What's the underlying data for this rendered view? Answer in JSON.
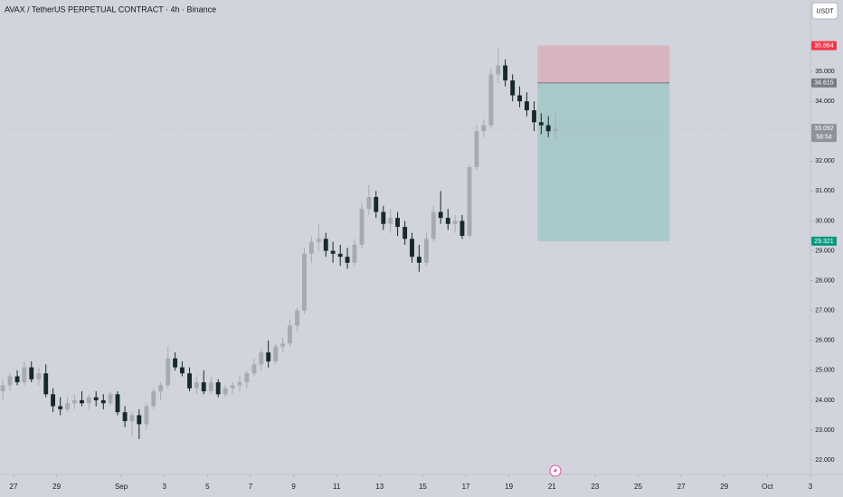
{
  "chart_data": {
    "type": "candlestick",
    "title": "AVAX / TetherUS PERPETUAL CONTRACT · 4h · Binance",
    "currency": "USDT",
    "x": [
      26.5,
      26.83,
      27.17,
      27.5,
      27.83,
      28.17,
      28.5,
      28.83,
      29.17,
      29.5,
      29.83,
      30.17,
      30.5,
      30.83,
      31.17,
      31.5,
      31.83,
      32.17,
      32.5,
      32.83,
      33.17,
      33.5,
      33.83,
      34.17,
      34.5,
      34.83,
      35.17,
      35.5,
      35.83,
      36.17,
      36.5,
      36.83,
      37.17,
      37.5,
      37.83,
      38.17,
      38.5,
      38.83,
      39.17,
      39.5,
      39.83,
      40.17,
      40.5,
      40.83,
      41.17,
      41.5,
      41.83,
      42.17,
      42.5,
      42.83,
      43.17,
      43.5,
      43.83,
      44.17,
      44.5,
      44.83,
      45.17,
      45.5,
      45.83,
      46.17,
      46.5,
      46.83,
      47.17,
      47.5,
      47.83,
      48.17,
      48.5,
      48.83,
      49.17,
      49.5,
      49.83,
      50.17,
      50.5,
      50.83,
      51.17,
      51.5,
      51.83,
      52.17
    ],
    "open": [
      24.3,
      24.5,
      24.8,
      24.6,
      25.1,
      24.7,
      24.9,
      24.2,
      23.8,
      23.7,
      23.9,
      24.0,
      23.9,
      24.1,
      24.0,
      23.9,
      24.2,
      23.6,
      23.3,
      23.5,
      23.2,
      23.8,
      24.3,
      24.5,
      25.4,
      25.1,
      24.9,
      24.4,
      24.6,
      24.3,
      24.6,
      24.2,
      24.4,
      24.5,
      24.6,
      24.9,
      25.2,
      25.6,
      25.3,
      25.8,
      25.9,
      26.5,
      27.0,
      28.9,
      29.3,
      29.4,
      29.0,
      28.9,
      28.8,
      28.6,
      29.2,
      30.4,
      30.8,
      30.3,
      29.9,
      30.1,
      29.8,
      29.4,
      28.8,
      28.6,
      29.4,
      30.3,
      30.1,
      29.9,
      30.0,
      29.5,
      31.8,
      33.0,
      33.2,
      34.9,
      35.2,
      34.7,
      34.2,
      34.0,
      33.7,
      33.3,
      33.2,
      33.0
    ],
    "high": [
      24.7,
      24.9,
      25.0,
      25.3,
      25.3,
      25.1,
      25.2,
      24.4,
      24.1,
      24.1,
      24.2,
      24.3,
      24.2,
      24.3,
      24.2,
      24.3,
      24.3,
      23.8,
      23.6,
      23.7,
      23.9,
      24.4,
      24.6,
      25.8,
      25.6,
      25.3,
      25.1,
      24.8,
      25.0,
      24.8,
      24.7,
      24.5,
      24.6,
      24.8,
      25.0,
      25.4,
      25.7,
      26.0,
      25.9,
      26.1,
      26.7,
      27.1,
      29.1,
      29.5,
      29.9,
      29.6,
      29.3,
      29.2,
      29.1,
      29.4,
      30.6,
      31.2,
      31.0,
      30.5,
      30.4,
      30.3,
      30.0,
      29.6,
      29.2,
      29.6,
      30.5,
      31.0,
      30.4,
      30.2,
      30.2,
      31.9,
      33.2,
      33.4,
      35.1,
      35.8,
      35.4,
      34.9,
      34.5,
      34.3,
      34.0,
      33.6,
      33.5,
      33.6
    ],
    "low": [
      24.0,
      24.3,
      24.5,
      24.5,
      24.6,
      24.5,
      24.1,
      23.6,
      23.5,
      23.6,
      23.7,
      23.8,
      23.7,
      23.8,
      23.7,
      23.8,
      23.5,
      23.1,
      22.8,
      22.7,
      23.0,
      23.7,
      24.0,
      24.4,
      25.0,
      24.8,
      24.3,
      24.2,
      24.2,
      24.2,
      24.1,
      24.1,
      24.2,
      24.3,
      24.4,
      24.8,
      25.0,
      25.1,
      25.2,
      25.6,
      25.8,
      26.3,
      26.9,
      28.6,
      29.0,
      28.8,
      28.6,
      28.5,
      28.4,
      28.5,
      29.1,
      30.2,
      30.1,
      29.7,
      29.6,
      29.5,
      29.2,
      28.6,
      28.3,
      28.5,
      29.3,
      29.9,
      29.7,
      29.6,
      29.4,
      29.4,
      31.7,
      32.8,
      33.1,
      34.6,
      34.5,
      34.0,
      33.8,
      33.5,
      33.0,
      32.9,
      32.8,
      32.7
    ],
    "close": [
      24.5,
      24.8,
      24.6,
      25.1,
      24.7,
      24.9,
      24.2,
      23.8,
      23.7,
      23.9,
      24.0,
      23.9,
      24.1,
      24.0,
      23.9,
      24.2,
      23.6,
      23.3,
      23.5,
      23.2,
      23.8,
      24.3,
      24.5,
      25.4,
      25.1,
      24.9,
      24.4,
      24.6,
      24.3,
      24.6,
      24.2,
      24.4,
      24.5,
      24.6,
      24.9,
      25.2,
      25.6,
      25.3,
      25.8,
      25.9,
      26.5,
      27.0,
      28.9,
      29.3,
      29.4,
      29.0,
      28.9,
      28.8,
      28.6,
      29.2,
      30.4,
      30.8,
      30.3,
      29.9,
      30.1,
      29.8,
      29.4,
      28.8,
      28.6,
      29.4,
      30.3,
      30.1,
      29.9,
      30.0,
      29.5,
      31.8,
      33.0,
      33.2,
      34.9,
      35.2,
      34.7,
      34.2,
      34.0,
      33.7,
      33.3,
      33.2,
      33.0,
      33.092
    ],
    "up_color": "#a7aab3",
    "down_color": "#17292a",
    "xlim": [
      26.37,
      64.0
    ],
    "xticks": [
      {
        "value": 27,
        "label": "27"
      },
      {
        "value": 29,
        "label": "29"
      },
      {
        "value": 32,
        "label": "Sep"
      },
      {
        "value": 34,
        "label": "3"
      },
      {
        "value": 36,
        "label": "5"
      },
      {
        "value": 38,
        "label": "7"
      },
      {
        "value": 40,
        "label": "9"
      },
      {
        "value": 42,
        "label": "11"
      },
      {
        "value": 44,
        "label": "13"
      },
      {
        "value": 46,
        "label": "15"
      },
      {
        "value": 48,
        "label": "17"
      },
      {
        "value": 50,
        "label": "19"
      },
      {
        "value": 52,
        "label": "21"
      },
      {
        "value": 54,
        "label": "23"
      },
      {
        "value": 56,
        "label": "25"
      },
      {
        "value": 58,
        "label": "27"
      },
      {
        "value": 60,
        "label": "29"
      },
      {
        "value": 62,
        "label": "Oct"
      },
      {
        "value": 64,
        "label": "3"
      }
    ],
    "ylim": [
      21.67,
      37.39
    ],
    "yticks": [
      {
        "value": 22,
        "label": "22.000"
      },
      {
        "value": 23,
        "label": "23.000"
      },
      {
        "value": 24,
        "label": "24.000"
      },
      {
        "value": 25,
        "label": "25.000"
      },
      {
        "value": 26,
        "label": "26.000"
      },
      {
        "value": 27,
        "label": "27.000"
      },
      {
        "value": 28,
        "label": "28.000"
      },
      {
        "value": 29,
        "label": "29.000"
      },
      {
        "value": 30,
        "label": "30.000"
      },
      {
        "value": 31,
        "label": "31.000"
      },
      {
        "value": 32,
        "label": "32.000"
      },
      {
        "value": 34,
        "label": "34.000"
      },
      {
        "value": 35,
        "label": "35.000"
      }
    ],
    "position": {
      "x_start": 51.33,
      "x_end": 57.46,
      "stop": 35.864,
      "entry": 34.615,
      "target": 29.321,
      "stop_color": "#f23645",
      "entry_color": "#787b86",
      "target_color": "#089981"
    },
    "last_price": 33.092,
    "countdown": "58:54"
  }
}
